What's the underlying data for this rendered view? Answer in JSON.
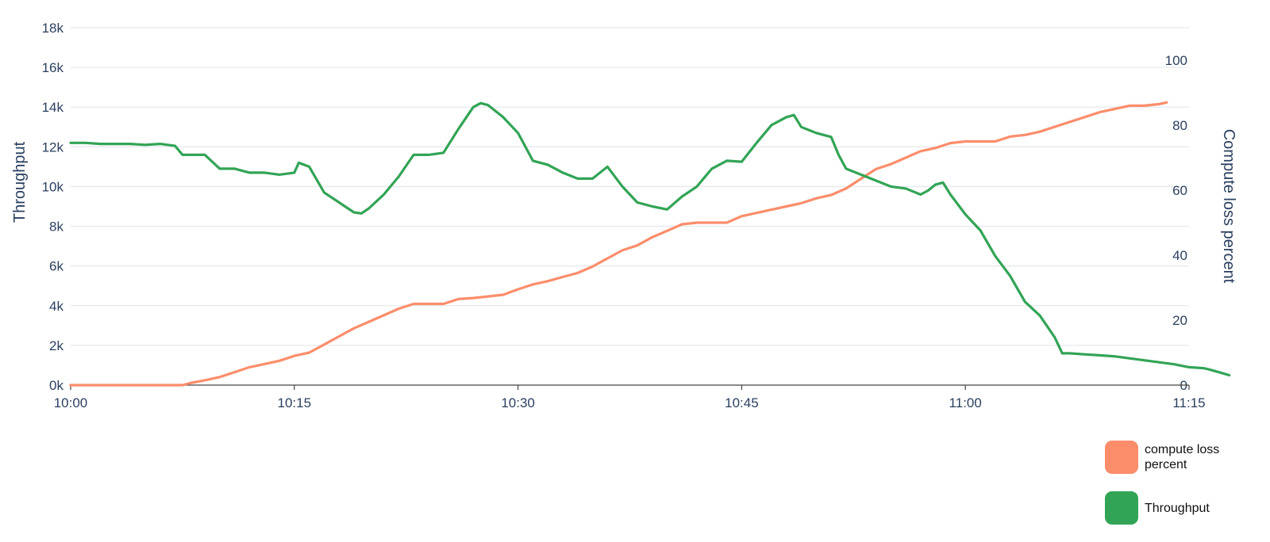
{
  "chart_data": {
    "type": "line",
    "x_axis": {
      "ticks": [
        "10:00",
        "10:15",
        "10:30",
        "10:45",
        "11:00",
        "11:15"
      ],
      "range_minutes": [
        0,
        75
      ]
    },
    "y_left": {
      "label": "Throughput",
      "ticks": [
        "0k",
        "2k",
        "4k",
        "6k",
        "8k",
        "10k",
        "12k",
        "14k",
        "16k",
        "18k"
      ],
      "range": [
        0,
        18000
      ]
    },
    "y_right": {
      "label": "Compute loss percent",
      "ticks": [
        "0",
        "20",
        "40",
        "60",
        "80",
        "100"
      ],
      "range": [
        0,
        110
      ]
    },
    "grid": true,
    "legend_position": "bottom-right",
    "series": [
      {
        "name": "compute loss percent",
        "axis": "right",
        "color": "#fc8d6b",
        "points": [
          [
            0,
            0
          ],
          [
            7.5,
            0
          ],
          [
            8,
            0.6
          ],
          [
            9,
            1.5
          ],
          [
            10,
            2.5
          ],
          [
            11,
            4
          ],
          [
            12,
            5.5
          ],
          [
            13,
            6.5
          ],
          [
            14,
            7.5
          ],
          [
            15,
            9
          ],
          [
            16,
            10
          ],
          [
            17,
            12.5
          ],
          [
            18,
            15
          ],
          [
            19,
            17.5
          ],
          [
            20,
            19.5
          ],
          [
            21,
            21.5
          ],
          [
            22,
            23.5
          ],
          [
            23,
            25
          ],
          [
            25,
            25
          ],
          [
            26,
            26.5
          ],
          [
            27,
            26.8
          ],
          [
            28,
            27.3
          ],
          [
            29,
            27.8
          ],
          [
            30,
            29.5
          ],
          [
            31,
            31
          ],
          [
            32,
            32
          ],
          [
            33,
            33.3
          ],
          [
            34,
            34.5
          ],
          [
            35,
            36.5
          ],
          [
            36,
            39
          ],
          [
            37,
            41.5
          ],
          [
            38,
            43
          ],
          [
            39,
            45.5
          ],
          [
            40,
            47.5
          ],
          [
            41,
            49.5
          ],
          [
            42,
            50
          ],
          [
            44,
            50
          ],
          [
            44.5,
            51
          ],
          [
            45,
            52
          ],
          [
            46,
            53
          ],
          [
            47,
            54
          ],
          [
            48,
            55
          ],
          [
            49,
            56
          ],
          [
            50,
            57.5
          ],
          [
            51,
            58.5
          ],
          [
            52,
            60.5
          ],
          [
            53,
            63.5
          ],
          [
            54,
            66.5
          ],
          [
            55,
            68
          ],
          [
            56,
            70
          ],
          [
            57,
            72
          ],
          [
            58,
            73
          ],
          [
            59,
            74.5
          ],
          [
            60,
            75
          ],
          [
            62,
            75
          ],
          [
            63,
            76.5
          ],
          [
            64,
            77
          ],
          [
            65,
            78
          ],
          [
            66,
            79.5
          ],
          [
            67,
            81
          ],
          [
            68,
            82.5
          ],
          [
            69,
            84
          ],
          [
            70,
            85
          ],
          [
            71,
            86
          ],
          [
            72,
            86
          ],
          [
            73,
            86.5
          ],
          [
            73.5,
            87
          ]
        ]
      },
      {
        "name": "Throughput",
        "axis": "left",
        "color": "#32a456",
        "points": [
          [
            0,
            12200
          ],
          [
            1,
            12200
          ],
          [
            2,
            12150
          ],
          [
            3,
            12150
          ],
          [
            4,
            12150
          ],
          [
            5,
            12100
          ],
          [
            6,
            12150
          ],
          [
            7,
            12050
          ],
          [
            7.5,
            11600
          ],
          [
            9,
            11600
          ],
          [
            10,
            10900
          ],
          [
            11,
            10900
          ],
          [
            12,
            10700
          ],
          [
            13,
            10700
          ],
          [
            14,
            10600
          ],
          [
            15,
            10700
          ],
          [
            15.3,
            11200
          ],
          [
            16,
            11000
          ],
          [
            17,
            9700
          ],
          [
            18,
            9200
          ],
          [
            19,
            8700
          ],
          [
            19.5,
            8650
          ],
          [
            20,
            8900
          ],
          [
            21,
            9600
          ],
          [
            22,
            10500
          ],
          [
            23,
            11600
          ],
          [
            24,
            11600
          ],
          [
            25,
            11700
          ],
          [
            26,
            12900
          ],
          [
            27,
            14000
          ],
          [
            27.5,
            14200
          ],
          [
            28,
            14100
          ],
          [
            29,
            13500
          ],
          [
            30,
            12700
          ],
          [
            31,
            11300
          ],
          [
            32,
            11100
          ],
          [
            33,
            10700
          ],
          [
            34,
            10400
          ],
          [
            35,
            10400
          ],
          [
            36,
            11000
          ],
          [
            37,
            10000
          ],
          [
            38,
            9200
          ],
          [
            39,
            9000
          ],
          [
            40,
            8850
          ],
          [
            41,
            9500
          ],
          [
            42,
            10000
          ],
          [
            43,
            10900
          ],
          [
            44,
            11300
          ],
          [
            45,
            11250
          ],
          [
            46,
            12200
          ],
          [
            47,
            13100
          ],
          [
            48,
            13500
          ],
          [
            48.5,
            13600
          ],
          [
            49,
            13000
          ],
          [
            50,
            12700
          ],
          [
            51,
            12500
          ],
          [
            51.5,
            11600
          ],
          [
            52,
            10900
          ],
          [
            53,
            10600
          ],
          [
            54,
            10300
          ],
          [
            55,
            10000
          ],
          [
            56,
            9900
          ],
          [
            57,
            9600
          ],
          [
            57.5,
            9800
          ],
          [
            58,
            10100
          ],
          [
            58.5,
            10200
          ],
          [
            59,
            9600
          ],
          [
            60,
            8600
          ],
          [
            61,
            7800
          ],
          [
            62,
            6500
          ],
          [
            63,
            5500
          ],
          [
            64,
            4200
          ],
          [
            65,
            3500
          ],
          [
            66,
            2400
          ],
          [
            66.5,
            1600
          ],
          [
            67,
            1600
          ],
          [
            68,
            1550
          ],
          [
            69,
            1500
          ],
          [
            70,
            1450
          ],
          [
            71,
            1350
          ],
          [
            72,
            1250
          ],
          [
            73,
            1150
          ],
          [
            74,
            1050
          ],
          [
            75,
            900
          ],
          [
            76,
            850
          ],
          [
            76.3,
            800
          ],
          [
            77,
            650
          ],
          [
            77.7,
            500
          ]
        ]
      }
    ]
  }
}
